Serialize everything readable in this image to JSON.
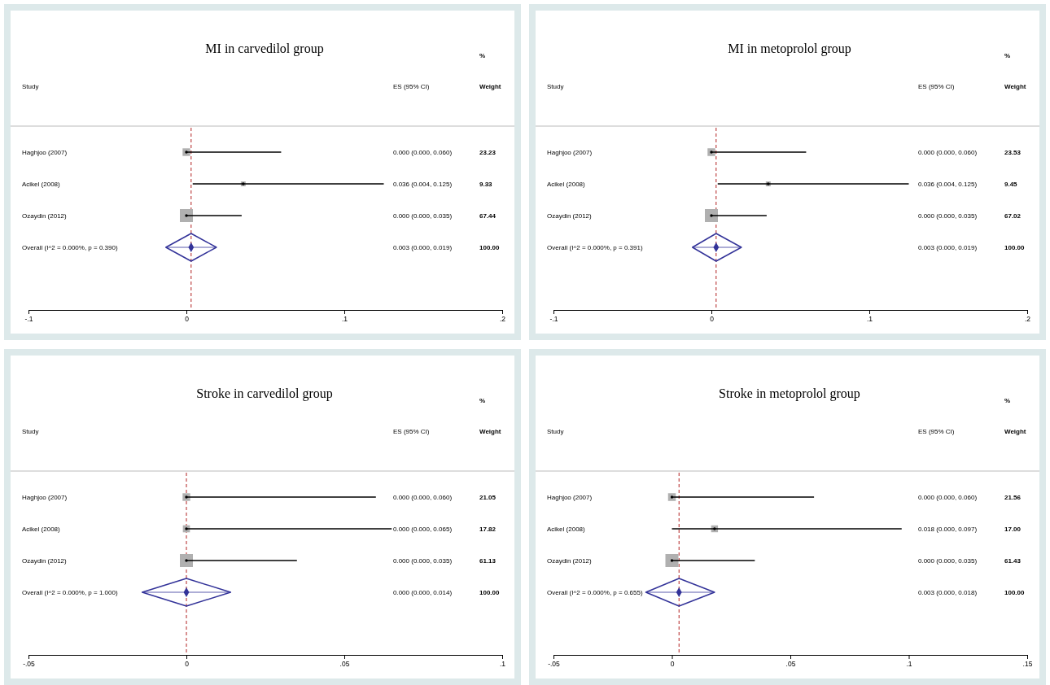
{
  "chart_data": [
    {
      "type": "scatter",
      "title": "MI in carvedilol group",
      "orientation": "horizontal",
      "categories": [
        "Haghjoo (2007)",
        "Acikel (2008)",
        "Ozaydin (2012)",
        "Overall  (I^2 = 0.000%, p = 0.390)"
      ],
      "xlim": [
        -0.1,
        0.2
      ],
      "xticks": [
        {
          "value": -0.1,
          "label": "-.1"
        },
        {
          "value": 0,
          "label": "0"
        },
        {
          "value": 0.1,
          "label": ".1"
        },
        {
          "value": 0.2,
          "label": ".2"
        }
      ],
      "annotations": [
        "Study",
        "ES (95% CI)",
        "%",
        "Weight",
        "0.000 (0.000, 0.060)",
        "23.23",
        "0.036 (0.004, 0.125)",
        "9.33",
        "0.000 (0.000, 0.035)",
        "67.44",
        "0.003 (0.000, 0.019)",
        "100.00"
      ],
      "ref_lines": [
        {
          "axis": "x",
          "value": 0.003,
          "color": "#b22222",
          "line_style": "dashed"
        }
      ],
      "series": [
        {
          "marker": "square",
          "color": "#b0b0b0",
          "values": [
            0.0,
            0.036,
            0.0,
            null
          ],
          "errors": [
            [
              0.0,
              0.06
            ],
            [
              0.004,
              0.125
            ],
            [
              0.0,
              0.035
            ],
            null
          ],
          "sizes": [
            0.344,
            0.138,
            1,
            null
          ]
        },
        {
          "marker": "diamond",
          "color": "#333399",
          "values": [
            null,
            null,
            null,
            0.003
          ],
          "errors": [
            null,
            null,
            null,
            [
              -0.013,
              0.019
            ]
          ]
        }
      ]
    },
    {
      "type": "scatter",
      "title": "MI in metoprolol  group",
      "orientation": "horizontal",
      "categories": [
        "Haghjoo (2007)",
        "Acikel (2008)",
        "Ozaydin (2012)",
        "Overall  (I^2 = 0.000%, p = 0.391)"
      ],
      "xlim": [
        -0.1,
        0.2
      ],
      "xticks": [
        {
          "value": -0.1,
          "label": "-.1"
        },
        {
          "value": 0,
          "label": "0"
        },
        {
          "value": 0.1,
          "label": ".1"
        },
        {
          "value": 0.2,
          "label": ".2"
        }
      ],
      "annotations": [
        "Study",
        "ES (95% CI)",
        "%",
        "Weight",
        "0.000 (0.000, 0.060)",
        "23.53",
        "0.036 (0.004, 0.125)",
        "9.45",
        "0.000 (0.000, 0.035)",
        "67.02",
        "0.003 (0.000, 0.019)",
        "100.00"
      ],
      "ref_lines": [
        {
          "axis": "x",
          "value": 0.003,
          "color": "#b22222",
          "line_style": "dashed"
        }
      ],
      "series": [
        {
          "marker": "square",
          "color": "#b0b0b0",
          "values": [
            0.0,
            0.036,
            0.0,
            null
          ],
          "errors": [
            [
              0.0,
              0.06
            ],
            [
              0.004,
              0.125
            ],
            [
              0.0,
              0.035
            ],
            null
          ],
          "sizes": [
            0.351,
            0.141,
            1,
            null
          ]
        },
        {
          "marker": "diamond",
          "color": "#333399",
          "values": [
            null,
            null,
            null,
            0.003
          ],
          "errors": [
            null,
            null,
            null,
            [
              -0.012,
              0.019
            ]
          ]
        }
      ]
    },
    {
      "type": "scatter",
      "title": "Stroke in carvedilol  group",
      "orientation": "horizontal",
      "categories": [
        "Haghjoo (2007)",
        "Acikel (2008)",
        "Ozaydin (2012)",
        "Overall  (I^2 = 0.000%, p = 1.000)"
      ],
      "xlim": [
        -0.05,
        0.1
      ],
      "xticks": [
        {
          "value": -0.05,
          "label": "-.05"
        },
        {
          "value": 0,
          "label": "0"
        },
        {
          "value": 0.05,
          "label": ".05"
        },
        {
          "value": 0.1,
          "label": ".1"
        }
      ],
      "annotations": [
        "Study",
        "ES (95% CI)",
        "%",
        "Weight",
        "0.000 (0.000, 0.060)",
        "21.05",
        "0.000 (0.000, 0.065)",
        "17.82",
        "0.000 (0.000, 0.035)",
        "61.13",
        "0.000 (0.000, 0.014)",
        "100.00"
      ],
      "ref_lines": [
        {
          "axis": "x",
          "value": 0.0,
          "color": "#b22222",
          "line_style": "dashed"
        }
      ],
      "series": [
        {
          "marker": "square",
          "color": "#b0b0b0",
          "values": [
            0.0,
            0.0,
            0.0,
            null
          ],
          "errors": [
            [
              0.0,
              0.06
            ],
            [
              0.0,
              0.065
            ],
            [
              0.0,
              0.035
            ],
            null
          ],
          "sizes": [
            0.344,
            0.292,
            1,
            null
          ]
        },
        {
          "marker": "diamond",
          "color": "#333399",
          "values": [
            null,
            null,
            null,
            0.0
          ],
          "errors": [
            null,
            null,
            null,
            [
              -0.014,
              0.014
            ]
          ]
        }
      ]
    },
    {
      "type": "scatter",
      "title": "Stroke in metoprolol  group",
      "orientation": "horizontal",
      "categories": [
        "Haghjoo (2007)",
        "Acikel (2008)",
        "Ozaydin (2012)",
        "Overall  (I^2 = 0.000%, p = 0.655)"
      ],
      "xlim": [
        -0.05,
        0.15
      ],
      "xticks": [
        {
          "value": -0.05,
          "label": "-.05"
        },
        {
          "value": 0,
          "label": "0"
        },
        {
          "value": 0.05,
          "label": ".05"
        },
        {
          "value": 0.1,
          "label": ".1"
        },
        {
          "value": 0.15,
          "label": ".15"
        }
      ],
      "annotations": [
        "Study",
        "ES (95% CI)",
        "%",
        "Weight",
        "0.000 (0.000, 0.060)",
        "21.56",
        "0.018 (0.000, 0.097)",
        "17.00",
        "0.000 (0.000, 0.035)",
        "61.43",
        "0.003 (0.000, 0.018)",
        "100.00"
      ],
      "ref_lines": [
        {
          "axis": "x",
          "value": 0.003,
          "color": "#b22222",
          "line_style": "dashed"
        }
      ],
      "series": [
        {
          "marker": "square",
          "color": "#b0b0b0",
          "values": [
            0.0,
            0.018,
            0.0,
            null
          ],
          "errors": [
            [
              0.0,
              0.06
            ],
            [
              0.0,
              0.097
            ],
            [
              0.0,
              0.035
            ],
            null
          ],
          "sizes": [
            0.351,
            0.277,
            1,
            null
          ]
        },
        {
          "marker": "diamond",
          "color": "#333399",
          "values": [
            null,
            null,
            null,
            0.003
          ],
          "errors": [
            null,
            null,
            null,
            [
              -0.011,
              0.018
            ]
          ]
        }
      ]
    }
  ]
}
